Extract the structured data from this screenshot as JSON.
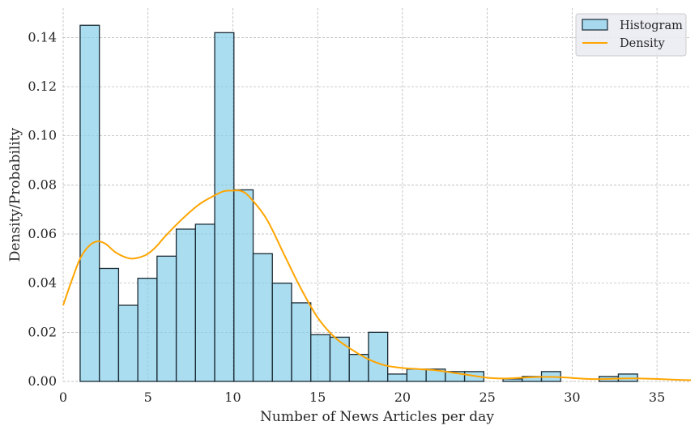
{
  "chart_data": {
    "type": "bar",
    "xlabel": "Number of News Articles per day",
    "ylabel": "Density/Probability",
    "xlim": [
      0,
      37
    ],
    "ylim": [
      0,
      0.152
    ],
    "grid": true,
    "legend_position": "top-right",
    "x_ticks": [
      "0",
      "5",
      "10",
      "15",
      "20",
      "25",
      "30",
      "35"
    ],
    "y_ticks": [
      "0.00",
      "0.02",
      "0.04",
      "0.06",
      "0.08",
      "0.10",
      "0.12",
      "0.14"
    ],
    "bin_width": 1.133,
    "bin_start": 1,
    "series": [
      {
        "name": "Histogram",
        "type": "bar",
        "color": "#87CEEB",
        "values": [
          0.145,
          0.046,
          0.031,
          0.042,
          0.051,
          0.062,
          0.064,
          0.142,
          0.078,
          0.052,
          0.04,
          0.032,
          0.019,
          0.018,
          0.011,
          0.02,
          0.003,
          0.005,
          0.005,
          0.004,
          0.004,
          0.0,
          0.001,
          0.002,
          0.004,
          0.0,
          0.0,
          0.002,
          0.003
        ]
      },
      {
        "name": "Density",
        "type": "line",
        "color": "#FFA500",
        "x": [
          0,
          0.5,
          1,
          1.5,
          2,
          2.5,
          3,
          3.5,
          4,
          4.5,
          5,
          5.5,
          6,
          7,
          8,
          9,
          9.5,
          10,
          10.5,
          11,
          12,
          13,
          14,
          15,
          16,
          17,
          18,
          19,
          20,
          21,
          22,
          23,
          24,
          25,
          26,
          27,
          28,
          29,
          30,
          31,
          32,
          33,
          34,
          35,
          36,
          37
        ],
        "y": [
          0.031,
          0.041,
          0.05,
          0.055,
          0.057,
          0.056,
          0.053,
          0.051,
          0.05,
          0.0505,
          0.052,
          0.055,
          0.059,
          0.066,
          0.072,
          0.076,
          0.0775,
          0.0777,
          0.0775,
          0.075,
          0.066,
          0.052,
          0.038,
          0.026,
          0.018,
          0.013,
          0.009,
          0.0065,
          0.0055,
          0.005,
          0.0045,
          0.0035,
          0.0025,
          0.0015,
          0.0012,
          0.0015,
          0.0018,
          0.0018,
          0.0014,
          0.001,
          0.001,
          0.0012,
          0.0012,
          0.001,
          0.0007,
          0.0005
        ]
      }
    ]
  }
}
